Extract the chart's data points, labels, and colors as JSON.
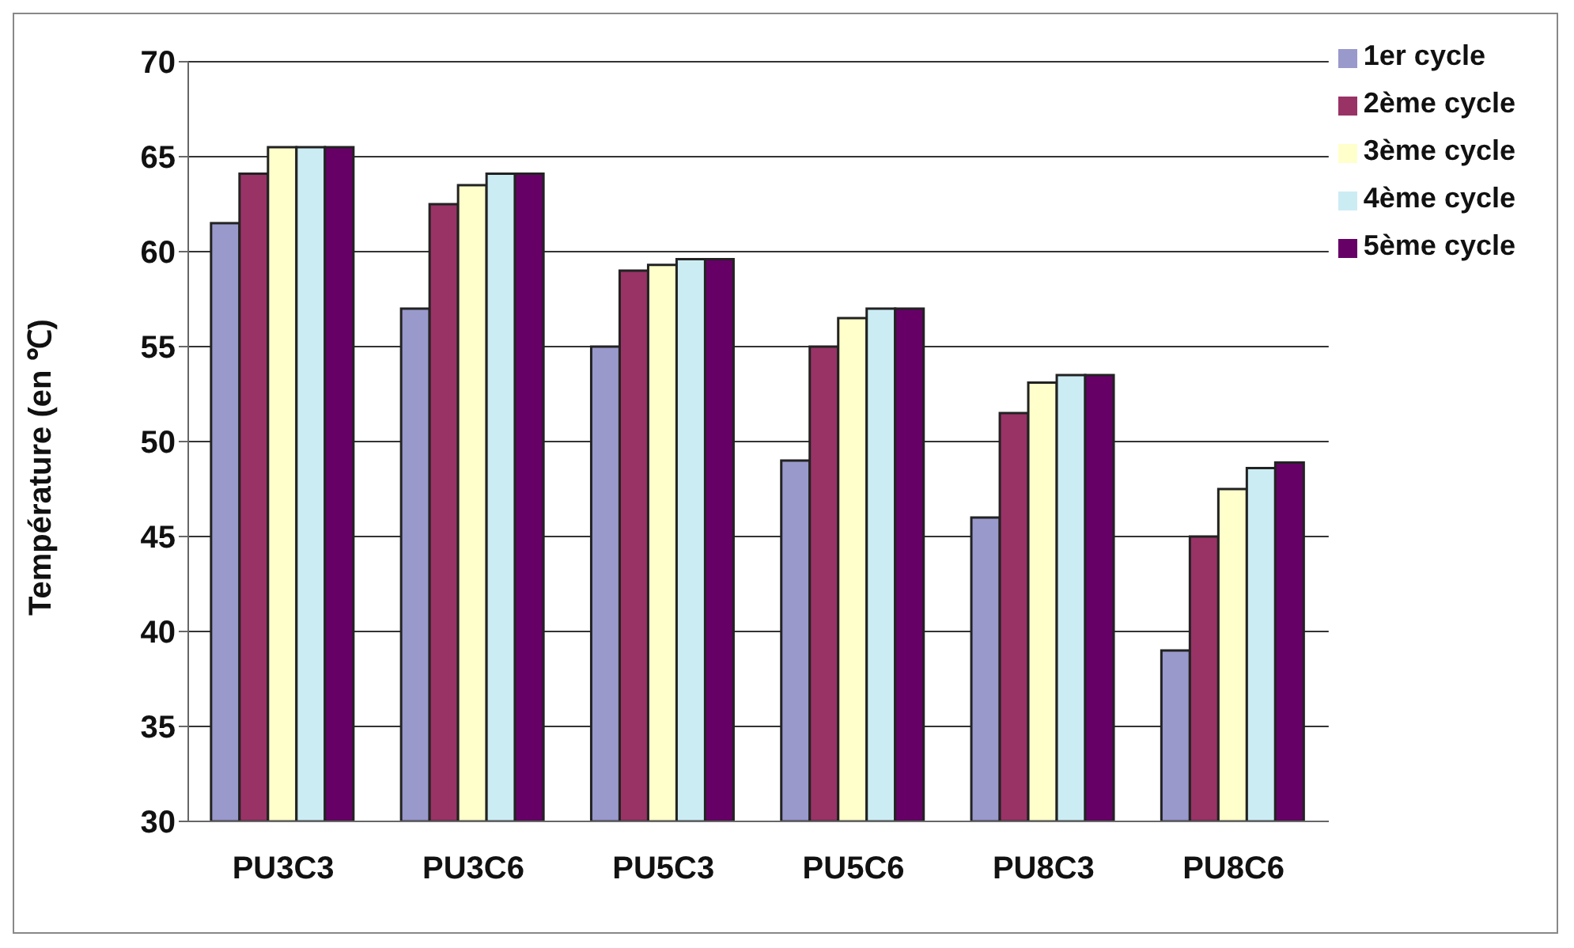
{
  "chart_data": {
    "type": "bar",
    "ylabel": "Température (en ℃)",
    "categories": [
      "PU3C3",
      "PU3C6",
      "PU5C3",
      "PU5C6",
      "PU8C3",
      "PU8C6"
    ],
    "series": [
      {
        "name": "1er cycle",
        "color": "#9999cc",
        "values": [
          61.5,
          57,
          55,
          49,
          46,
          39
        ]
      },
      {
        "name": "2ème cycle",
        "color": "#993366",
        "values": [
          64.1,
          62.5,
          59,
          55,
          51.5,
          45
        ]
      },
      {
        "name": "3ème cycle",
        "color": "#ffffcc",
        "values": [
          65.5,
          63.5,
          59.3,
          56.5,
          53.1,
          47.5
        ]
      },
      {
        "name": "4ème cycle",
        "color": "#ccecf4",
        "values": [
          65.5,
          64.1,
          59.6,
          57,
          53.5,
          48.6
        ]
      },
      {
        "name": "5ème cycle",
        "color": "#660066",
        "values": [
          65.5,
          64.1,
          59.6,
          57,
          53.5,
          48.9
        ]
      }
    ],
    "ylim": [
      30,
      70
    ],
    "yticks": [
      30,
      35,
      40,
      45,
      50,
      55,
      60,
      65,
      70
    ],
    "grid": "y",
    "legend": "top right"
  }
}
